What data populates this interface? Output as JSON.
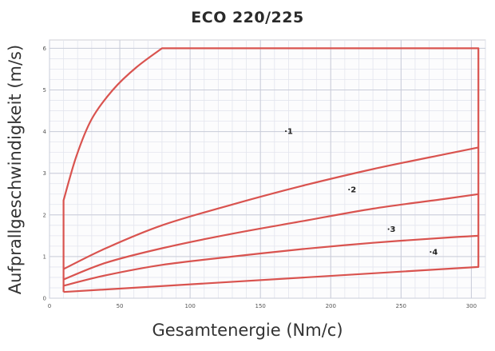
{
  "chart_data": {
    "type": "line",
    "title": "ECO 220/225",
    "xlabel": "Gesamtenergie (Nm/c)",
    "ylabel": "Aufprallgeschwindigkeit (m/s)",
    "xlim": [
      0,
      310
    ],
    "ylim": [
      0,
      6.2
    ],
    "xticks": [
      0,
      50,
      100,
      150,
      200,
      250,
      300
    ],
    "yticks": [
      0,
      1,
      2,
      3,
      4,
      5,
      6
    ],
    "grid": true,
    "boundary": {
      "x": [
        10,
        10,
        19,
        30,
        45,
        62,
        80,
        305,
        305,
        10
      ],
      "y": [
        0.15,
        2.35,
        3.4,
        4.3,
        5.0,
        5.55,
        6.0,
        6.0,
        0.75,
        0.15
      ]
    },
    "region_dividers": [
      {
        "x": [
          10,
          40,
          80,
          130,
          180,
          230,
          280,
          305
        ],
        "y": [
          0.7,
          1.2,
          1.75,
          2.25,
          2.7,
          3.1,
          3.45,
          3.62
        ]
      },
      {
        "x": [
          10,
          40,
          80,
          130,
          180,
          230,
          280,
          305
        ],
        "y": [
          0.45,
          0.85,
          1.2,
          1.55,
          1.85,
          2.15,
          2.38,
          2.5
        ]
      },
      {
        "x": [
          10,
          40,
          80,
          130,
          180,
          230,
          280,
          305
        ],
        "y": [
          0.3,
          0.55,
          0.8,
          1.0,
          1.18,
          1.33,
          1.45,
          1.5
        ]
      }
    ],
    "region_labels": [
      {
        "text": "1",
        "x": 167,
        "y": 4.0
      },
      {
        "text": "2",
        "x": 212,
        "y": 2.6
      },
      {
        "text": "3",
        "x": 240,
        "y": 1.65
      },
      {
        "text": "4",
        "x": 270,
        "y": 1.1
      }
    ]
  }
}
